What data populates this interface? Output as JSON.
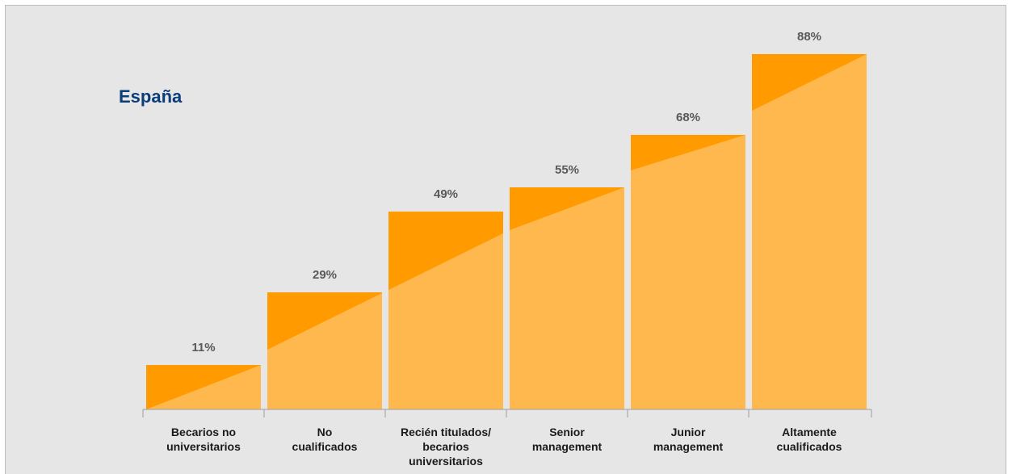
{
  "chart_data": {
    "type": "bar",
    "title": "España",
    "categories": [
      [
        "Becarios no",
        "universitarios"
      ],
      [
        "No",
        "cualificados"
      ],
      [
        "Recién titulados/",
        "becarios",
        "universitarios"
      ],
      [
        "Senior",
        "management"
      ],
      [
        "Junior",
        "management"
      ],
      [
        "Altamente",
        "cualificados"
      ]
    ],
    "values": [
      11,
      29,
      49,
      55,
      68,
      88
    ],
    "value_labels": [
      "11%",
      "29%",
      "49%",
      "55%",
      "68%",
      "88%"
    ],
    "ylim": [
      0,
      100
    ],
    "grid": false,
    "legend": "none",
    "colors": {
      "bar_light": "#ffb84d",
      "bar_dark": "#ff9a00",
      "background": "#e6e6e6",
      "label_text": "#595959",
      "category_text": "#1a1a1a",
      "title": "#0b3d7a",
      "axis": "#9e9e9e"
    }
  }
}
